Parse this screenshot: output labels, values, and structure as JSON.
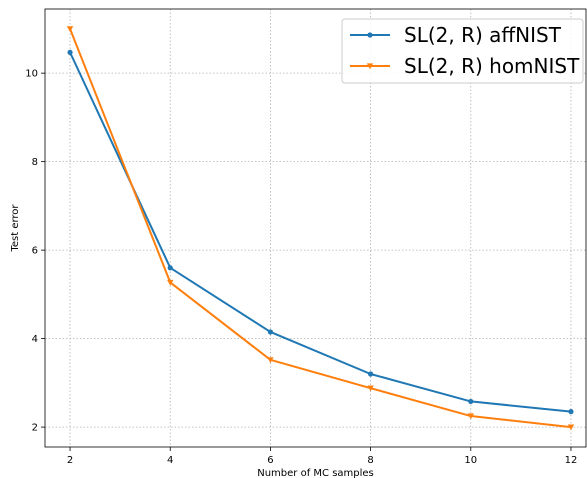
{
  "chart_data": {
    "type": "line",
    "title": "",
    "xlabel": "Number of MC samples",
    "ylabel": "Test error",
    "xlim": [
      1.5,
      12.3
    ],
    "ylim": [
      1.55,
      11.45
    ],
    "xticks": [
      2,
      4,
      6,
      8,
      10,
      12
    ],
    "yticks": [
      2,
      4,
      6,
      8,
      10
    ],
    "grid": true,
    "legend_position": "top-right",
    "series": [
      {
        "name": "SL(2, R) affNIST",
        "color": "#1f77b4",
        "marker": "circle",
        "x": [
          2,
          4,
          6,
          8,
          10,
          12
        ],
        "y": [
          10.47,
          5.6,
          4.15,
          3.2,
          2.58,
          2.35
        ]
      },
      {
        "name": "SL(2, R) homNIST",
        "color": "#ff7f0e",
        "marker": "triangle-down",
        "x": [
          2,
          4,
          6,
          8,
          10,
          12
        ],
        "y": [
          11.0,
          5.27,
          3.52,
          2.88,
          2.25,
          2.0
        ]
      }
    ]
  }
}
